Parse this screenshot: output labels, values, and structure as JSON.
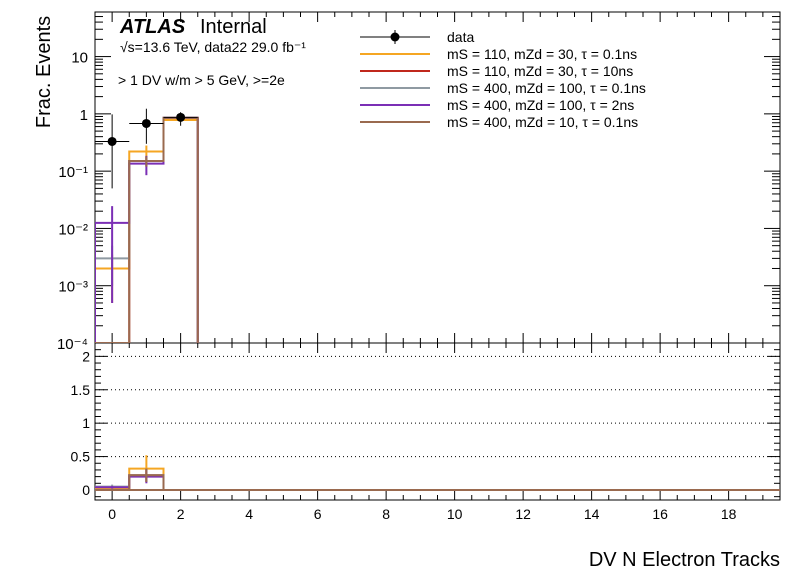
{
  "chart_data": {
    "type": "histogram",
    "xlabel": "DV N Electron Tracks",
    "ylabel": "Frac. Events",
    "experiment_label": "ATLAS",
    "status_label": "Internal",
    "lumi_label": "√s=13.6 TeV, data22 29.0 fb⁻¹",
    "selection_label": "> 1 DV w/m > 5 GeV, >=2e",
    "xlim": [
      -0.5,
      19.5
    ],
    "x_ticks": [
      0,
      2,
      4,
      6,
      8,
      10,
      12,
      14,
      16,
      18
    ],
    "top_panel": {
      "yscale": "log",
      "ylim": [
        0.0001,
        60
      ],
      "y_ticks": [
        {
          "value": 0.0001,
          "label": "10⁻⁴"
        },
        {
          "value": 0.001,
          "label": "10⁻³"
        },
        {
          "value": 0.01,
          "label": "10⁻²"
        },
        {
          "value": 0.1,
          "label": "10⁻¹"
        },
        {
          "value": 1,
          "label": "1"
        },
        {
          "value": 10,
          "label": "10"
        }
      ]
    },
    "bottom_panel": {
      "ylim": [
        -0.15,
        2.2
      ],
      "y_ticks": [
        {
          "value": 0,
          "label": "0"
        },
        {
          "value": 0.5,
          "label": "0.5"
        },
        {
          "value": 1,
          "label": "1"
        },
        {
          "value": 1.5,
          "label": "1.5"
        },
        {
          "value": 2,
          "label": "2"
        }
      ],
      "gridlines": [
        0.5,
        1,
        1.5,
        2
      ],
      "grid_style": "dotted"
    },
    "legend_position": "top-right",
    "series": [
      {
        "name": "data",
        "kind": "points",
        "color": "#000000",
        "x": [
          0,
          1,
          2
        ],
        "y": [
          0.33,
          0.68,
          0.87
        ],
        "yerr_low": [
          0.28,
          0.38,
          0.25
        ],
        "yerr_high": [
          0.65,
          0.55,
          0.2
        ]
      },
      {
        "name": "mS = 110, mZd = 30, τ = 0.1ns",
        "kind": "hist",
        "color": "#f5a623",
        "bin_edges": [
          -0.5,
          0.5,
          1.5,
          2.5
        ],
        "y": [
          0.002,
          0.22,
          0.78
        ],
        "err": [
          0.0015,
          0.06,
          0.05
        ],
        "ratio": [
          0.03,
          0.32,
          0.0
        ],
        "ratio_err": [
          0.02,
          0.2,
          0.0
        ]
      },
      {
        "name": "mS = 110, mZd = 30, τ = 10ns",
        "kind": "hist",
        "color": "#c0281c",
        "bin_edges": [
          -0.5,
          0.5,
          1.5,
          2.5
        ],
        "y": [
          0.0001,
          0.15,
          0.85
        ],
        "err": [
          0.0,
          0.03,
          0.05
        ],
        "ratio": [
          0.0,
          0.22,
          0.0
        ],
        "ratio_err": [
          0.0,
          0.1,
          0.0
        ]
      },
      {
        "name": "mS = 400, mZd = 100, τ = 0.1ns",
        "kind": "hist",
        "color": "#8f9aa2",
        "bin_edges": [
          -0.5,
          0.5,
          1.5,
          2.5
        ],
        "y": [
          0.003,
          0.15,
          0.85
        ],
        "err": [
          0.002,
          0.03,
          0.05
        ],
        "ratio": [
          0.05,
          0.22,
          0.0
        ],
        "ratio_err": [
          0.03,
          0.1,
          0.0
        ]
      },
      {
        "name": "mS = 400, mZd = 100, τ = 2ns",
        "kind": "hist",
        "color": "#7b2fb5",
        "bin_edges": [
          -0.5,
          0.5,
          1.5,
          2.5
        ],
        "y": [
          0.0125,
          0.135,
          0.85
        ],
        "err": [
          0.012,
          0.05,
          0.05
        ],
        "ratio": [
          0.04,
          0.2,
          0.0
        ],
        "ratio_err": [
          0.02,
          0.1,
          0.0
        ]
      },
      {
        "name": "mS = 400, mZd = 10, τ = 0.1ns",
        "kind": "hist",
        "color": "#9a6a4f",
        "bin_edges": [
          -0.5,
          0.5,
          1.5,
          2.5
        ],
        "y": [
          0.0001,
          0.15,
          0.85
        ],
        "err": [
          0.0,
          0.03,
          0.05
        ],
        "ratio": [
          0.0,
          0.22,
          0.0
        ],
        "ratio_err": [
          0.0,
          0.1,
          0.0
        ]
      }
    ]
  }
}
